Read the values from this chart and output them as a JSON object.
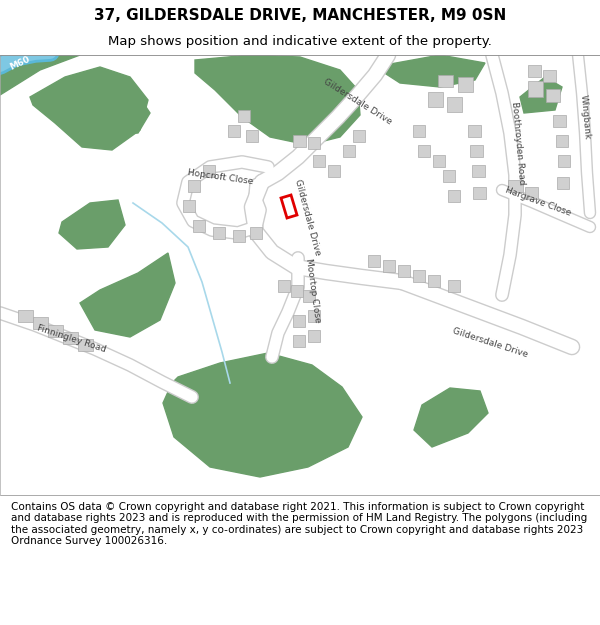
{
  "title": "37, GILDERSDALE DRIVE, MANCHESTER, M9 0SN",
  "subtitle": "Map shows position and indicative extent of the property.",
  "footer": "Contains OS data © Crown copyright and database right 2021. This information is subject to Crown copyright and database rights 2023 and is reproduced with the permission of HM Land Registry. The polygons (including the associated geometry, namely x, y co-ordinates) are subject to Crown copyright and database rights 2023 Ordnance Survey 100026316.",
  "bg_color": "#ffffff",
  "map_bg": "#f5f5f5",
  "road_color": "#ffffff",
  "road_stroke": "#cccccc",
  "green_color": "#6a9e6a",
  "building_color": "#d0d0d0",
  "building_stroke": "#aaaaaa",
  "blue_color": "#7ec8e3",
  "red_color": "#e00000",
  "label_color": "#444444",
  "title_fontsize": 11,
  "subtitle_fontsize": 9.5,
  "footer_fontsize": 7.5
}
